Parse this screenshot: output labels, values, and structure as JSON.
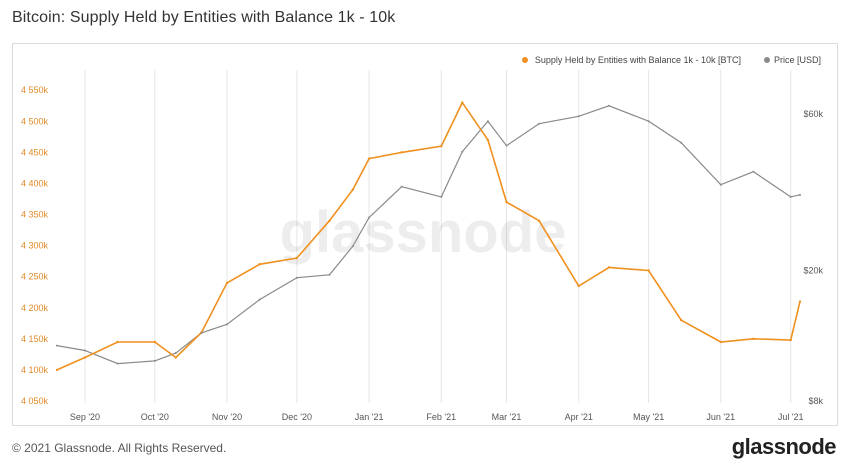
{
  "title": "Bitcoin: Supply Held by Entities with Balance 1k - 10k",
  "footer": {
    "copyright": "© 2021 Glassnode. All Rights Reserved.",
    "logo": "glassnode"
  },
  "watermark": "glassnode",
  "colors": {
    "supply": "#f0901e",
    "price": "#8a8a8a",
    "left_axis": "#e08a28",
    "right_axis": "#555555",
    "grid": "#e6e6e6"
  },
  "chart_data": {
    "type": "line",
    "legend_position": "top-right",
    "grid": "vertical",
    "x_ticks": [
      "Sep '20",
      "Oct '20",
      "Nov '20",
      "Dec '20",
      "Jan '21",
      "Feb '21",
      "Mar '21",
      "Apr '21",
      "May '21",
      "Jun '21",
      "Jul '21"
    ],
    "y_left": {
      "ticks": [
        "4 050k",
        "4 100k",
        "4 150k",
        "4 200k",
        "4 250k",
        "4 300k",
        "4 350k",
        "4 400k",
        "4 450k",
        "4 500k",
        "4 550k"
      ],
      "ylim": [
        4050000,
        4560000
      ]
    },
    "y_right": {
      "scale": "log",
      "ticks": [
        "$8k",
        "$20k",
        "$60k"
      ],
      "tick_values": [
        8000,
        20000,
        60000
      ],
      "ylim": [
        8000,
        74000
      ]
    },
    "x": [
      "2020-08-20",
      "2020-09-01",
      "2020-09-15",
      "2020-10-01",
      "2020-10-10",
      "2020-10-21",
      "2020-11-01",
      "2020-11-15",
      "2020-12-01",
      "2020-12-15",
      "2020-12-25",
      "2021-01-01",
      "2021-01-15",
      "2021-02-01",
      "2021-02-10",
      "2021-02-21",
      "2021-03-01",
      "2021-03-15",
      "2021-04-01",
      "2021-04-14",
      "2021-05-01",
      "2021-05-15",
      "2021-06-01",
      "2021-06-15",
      "2021-07-01",
      "2021-07-05"
    ],
    "series": [
      {
        "name": "Supply Held by Entities with Balance 1k - 10k [BTC]",
        "axis": "left",
        "values": [
          4100000,
          4120000,
          4145000,
          4145000,
          4120000,
          4160000,
          4240000,
          4270000,
          4280000,
          4340000,
          4390000,
          4440000,
          4450000,
          4460000,
          4530000,
          4470000,
          4370000,
          4340000,
          4235000,
          4265000,
          4260000,
          4180000,
          4145000,
          4150000,
          4148000,
          4210000
        ]
      },
      {
        "name": "Price [USD]",
        "axis": "right",
        "values": [
          11800,
          11400,
          10400,
          10600,
          11200,
          12900,
          13700,
          16300,
          19000,
          19400,
          23700,
          29000,
          36000,
          33500,
          46000,
          57000,
          48000,
          56000,
          59000,
          63500,
          57000,
          49000,
          36500,
          40000,
          33500,
          34000
        ]
      }
    ]
  }
}
